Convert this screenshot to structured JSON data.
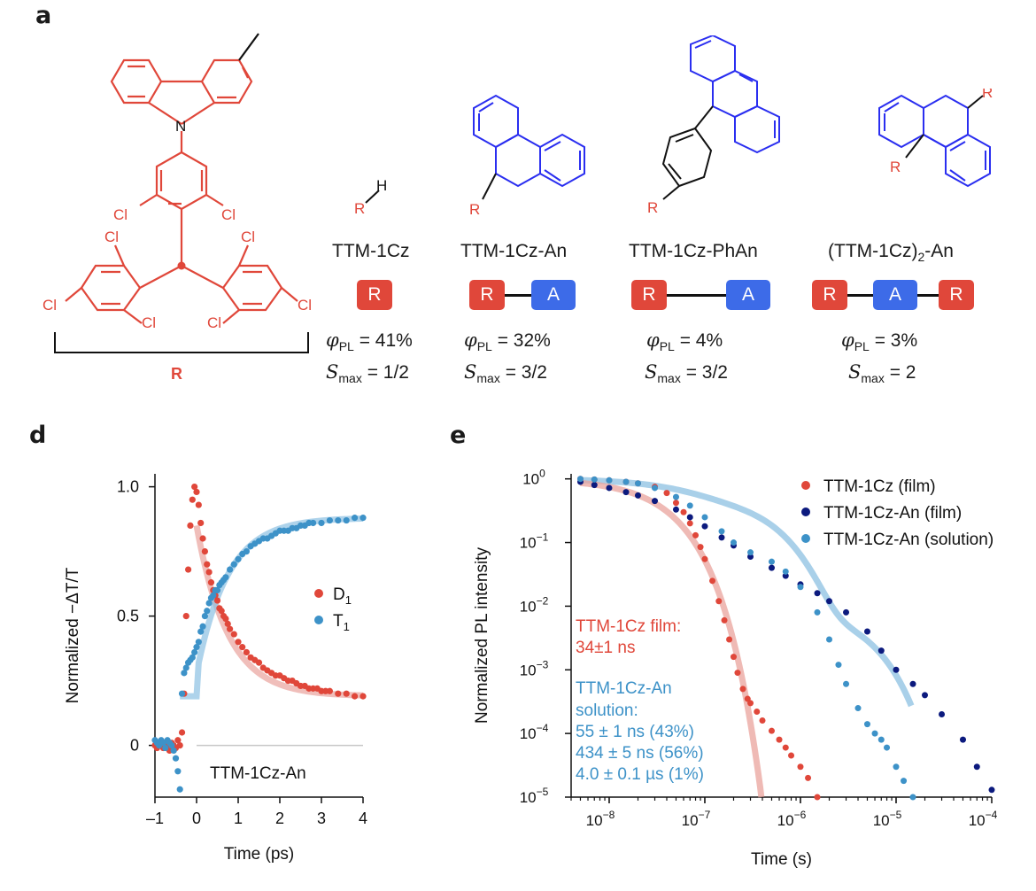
{
  "colors": {
    "red": "#e0473a",
    "blue": "#2a2ef0",
    "dblue": "#0c1a7e",
    "lblue": "#3d92c8",
    "lred": "#e9a39c",
    "lblue_fit": "#8cc0e2"
  },
  "panel_a": {
    "letter": "a",
    "structure": {
      "atoms": {
        "N": "N",
        "Cl": "Cl",
        "R": "R",
        "H": "H"
      }
    },
    "molecules": [
      {
        "name": "TTM-1Cz",
        "phi_symbol": "φ",
        "phi_sub": "PL",
        "phi_value": "= 41%",
        "s_symbol": "S",
        "s_sub": "max",
        "s_value": "= 1/2",
        "boxes": [
          "R"
        ]
      },
      {
        "name": "TTM-1Cz-An",
        "phi_symbol": "φ",
        "phi_sub": "PL",
        "phi_value": "= 32%",
        "s_symbol": "S",
        "s_sub": "max",
        "s_value": "= 3/2",
        "boxes": [
          "R",
          "A"
        ]
      },
      {
        "name": "TTM-1Cz-PhAn",
        "phi_symbol": "φ",
        "phi_sub": "PL",
        "phi_value": "= 4%",
        "s_symbol": "S",
        "s_sub": "max",
        "s_value": "= 3/2",
        "boxes": [
          "R",
          "A"
        ]
      },
      {
        "name_pre": "(TTM-1Cz)",
        "name_sub": "2",
        "name_post": "-An",
        "phi_symbol": "φ",
        "phi_sub": "PL",
        "phi_value": "= 3%",
        "s_symbol": "S",
        "s_sub": "max",
        "s_value": "= 2",
        "boxes": [
          "R",
          "A",
          "R"
        ]
      }
    ]
  },
  "panel_d": {
    "letter": "d",
    "inset_label": "TTM-1Cz-An"
  },
  "panel_e": {
    "letter": "e",
    "annotations": {
      "film_title": "TTM-1Cz film:",
      "film_value": "34±1 ns",
      "sol_title": "TTM-1Cz-An",
      "sol_sub": "solution:",
      "sol_c1": "55 ± 1 ns (43%)",
      "sol_c2": "434 ± 5 ns (56%)",
      "sol_c3": "4.0 ± 0.1 µs (1%)"
    }
  },
  "chart_data": [
    {
      "type": "scatter",
      "panel": "d",
      "title": "",
      "xlabel": "Time (ps)",
      "ylabel": "Normalized −ΔT/T",
      "xlim": [
        -1,
        4
      ],
      "ylim": [
        -0.2,
        1.05
      ],
      "xticks": [
        -1,
        0,
        1,
        2,
        3,
        4
      ],
      "xtick_labels": [
        "–1",
        "0",
        "1",
        "2",
        "3",
        "4"
      ],
      "yticks": [
        0,
        0.5,
        1.0
      ],
      "ytick_labels": [
        "0",
        "0.5",
        "1.0"
      ],
      "legend": {
        "placement": "middle-right",
        "entries": [
          {
            "name": "D",
            "sub": "1",
            "color": "#e0473a"
          },
          {
            "name": "T",
            "sub": "1",
            "color": "#3d92c8"
          }
        ]
      },
      "series": [
        {
          "name": "D1",
          "color": "#e0473a",
          "x": [
            -1.0,
            -0.95,
            -0.9,
            -0.85,
            -0.8,
            -0.75,
            -0.7,
            -0.65,
            -0.6,
            -0.55,
            -0.5,
            -0.45,
            -0.4,
            -0.35,
            -0.3,
            -0.25,
            -0.2,
            -0.15,
            -0.1,
            -0.05,
            0.0,
            0.05,
            0.1,
            0.15,
            0.2,
            0.25,
            0.3,
            0.35,
            0.4,
            0.45,
            0.5,
            0.55,
            0.6,
            0.65,
            0.7,
            0.75,
            0.8,
            0.9,
            1.0,
            1.1,
            1.2,
            1.3,
            1.4,
            1.5,
            1.6,
            1.7,
            1.8,
            1.9,
            2.0,
            2.1,
            2.2,
            2.3,
            2.4,
            2.5,
            2.6,
            2.7,
            2.8,
            2.9,
            3.0,
            3.1,
            3.2,
            3.4,
            3.6,
            3.8,
            4.0
          ],
          "y": [
            0.0,
            -0.01,
            0.01,
            0.0,
            -0.01,
            0.01,
            0.0,
            -0.02,
            0.01,
            0.0,
            -0.01,
            0.02,
            0.0,
            0.05,
            0.2,
            0.5,
            0.68,
            0.85,
            0.95,
            1.0,
            0.98,
            0.93,
            0.86,
            0.8,
            0.75,
            0.7,
            0.67,
            0.63,
            0.6,
            0.58,
            0.56,
            0.53,
            0.52,
            0.5,
            0.49,
            0.47,
            0.45,
            0.43,
            0.4,
            0.38,
            0.36,
            0.34,
            0.33,
            0.32,
            0.3,
            0.29,
            0.28,
            0.27,
            0.27,
            0.26,
            0.25,
            0.25,
            0.24,
            0.23,
            0.23,
            0.22,
            0.22,
            0.22,
            0.21,
            0.21,
            0.21,
            0.2,
            0.2,
            0.19,
            0.19
          ]
        },
        {
          "name": "T1",
          "color": "#3d92c8",
          "x": [
            -1.0,
            -0.95,
            -0.9,
            -0.85,
            -0.8,
            -0.75,
            -0.7,
            -0.65,
            -0.6,
            -0.55,
            -0.5,
            -0.45,
            -0.4,
            -0.35,
            -0.3,
            -0.25,
            -0.2,
            -0.15,
            -0.1,
            -0.05,
            0.0,
            0.05,
            0.1,
            0.15,
            0.2,
            0.25,
            0.3,
            0.35,
            0.4,
            0.45,
            0.5,
            0.55,
            0.6,
            0.65,
            0.7,
            0.8,
            0.9,
            1.0,
            1.1,
            1.2,
            1.3,
            1.4,
            1.5,
            1.6,
            1.7,
            1.8,
            1.9,
            2.0,
            2.1,
            2.2,
            2.3,
            2.4,
            2.5,
            2.6,
            2.7,
            2.8,
            3.0,
            3.2,
            3.4,
            3.6,
            3.8,
            4.0
          ],
          "y": [
            0.02,
            0.01,
            0.0,
            0.02,
            0.01,
            -0.01,
            0.02,
            0.01,
            0.0,
            -0.02,
            -0.05,
            -0.1,
            -0.17,
            0.2,
            0.28,
            0.3,
            0.32,
            0.33,
            0.34,
            0.36,
            0.38,
            0.4,
            0.44,
            0.46,
            0.5,
            0.52,
            0.55,
            0.57,
            0.58,
            0.6,
            0.6,
            0.62,
            0.63,
            0.64,
            0.65,
            0.68,
            0.7,
            0.72,
            0.74,
            0.75,
            0.77,
            0.78,
            0.79,
            0.8,
            0.8,
            0.81,
            0.82,
            0.83,
            0.83,
            0.83,
            0.84,
            0.84,
            0.85,
            0.85,
            0.86,
            0.86,
            0.86,
            0.87,
            0.87,
            0.87,
            0.88,
            0.88
          ]
        }
      ]
    },
    {
      "type": "scatter",
      "panel": "e",
      "title": "",
      "xlabel": "Time (s)",
      "ylabel": "Normalized PL intensity",
      "xscale": "log",
      "yscale": "log",
      "xlim": [
        4e-09,
        0.0001
      ],
      "ylim": [
        1e-05,
        1.2
      ],
      "xticks": [
        1e-08,
        1e-07,
        1e-06,
        1e-05,
        0.0001
      ],
      "xtick_exponents": [
        "−8",
        "−7",
        "−6",
        "−5",
        "−4"
      ],
      "yticks": [
        1e-05,
        0.0001,
        0.001,
        0.01,
        0.1,
        1
      ],
      "ytick_exponents": [
        "−5",
        "−4",
        "−3",
        "−2",
        "−1",
        "0"
      ],
      "tick_base": "10",
      "legend": {
        "placement": "top-right",
        "entries": [
          {
            "name": "TTM-1Cz (film)",
            "color": "#e0473a"
          },
          {
            "name": "TTM-1Cz-An (film)",
            "color": "#0c1a7e"
          },
          {
            "name": "TTM-1Cz-An (solution)",
            "color": "#3d92c8"
          }
        ]
      },
      "series": [
        {
          "name": "TTM-1Cz (film)",
          "color": "#e0473a",
          "x": [
            5e-09,
            7e-09,
            1e-08,
            1.5e-08,
            2e-08,
            3e-08,
            4e-08,
            5e-08,
            6e-08,
            7e-08,
            8e-08,
            9e-08,
            1e-07,
            1.2e-07,
            1.4e-07,
            1.6e-07,
            1.8e-07,
            2e-07,
            2.2e-07,
            2.5e-07,
            2.8e-07,
            3e-07,
            3.5e-07,
            4e-07,
            5e-07,
            6e-07,
            7e-07,
            8e-07,
            1e-06,
            1.2e-06,
            1.5e-06
          ],
          "y": [
            1.0,
            0.98,
            0.95,
            0.9,
            0.85,
            0.75,
            0.6,
            0.42,
            0.3,
            0.2,
            0.13,
            0.085,
            0.055,
            0.025,
            0.012,
            0.006,
            0.003,
            0.0016,
            0.0009,
            0.0005,
            0.00035,
            0.0003,
            0.00022,
            0.00016,
            0.00011,
            8e-05,
            6e-05,
            4.5e-05,
            3e-05,
            2e-05,
            1e-05
          ]
        },
        {
          "name": "TTM-1Cz-An (film)",
          "color": "#0c1a7e",
          "x": [
            5e-09,
            7e-09,
            1e-08,
            1.5e-08,
            2e-08,
            3e-08,
            5e-08,
            7e-08,
            1e-07,
            1.5e-07,
            2e-07,
            3e-07,
            5e-07,
            7e-07,
            1e-06,
            1.5e-06,
            2e-06,
            3e-06,
            5e-06,
            7e-06,
            1e-05,
            1.5e-05,
            2e-05,
            3e-05,
            5e-05,
            7e-05,
            0.0001
          ],
          "y": [
            0.9,
            0.8,
            0.72,
            0.62,
            0.55,
            0.45,
            0.33,
            0.25,
            0.18,
            0.12,
            0.09,
            0.06,
            0.04,
            0.03,
            0.022,
            0.016,
            0.012,
            0.008,
            0.004,
            0.002,
            0.001,
            0.0006,
            0.0004,
            0.0002,
            8e-05,
            3e-05,
            1.3e-05
          ]
        },
        {
          "name": "TTM-1Cz-An (solution)",
          "color": "#3d92c8",
          "x": [
            5e-09,
            7e-09,
            1e-08,
            1.5e-08,
            2e-08,
            3e-08,
            5e-08,
            7e-08,
            1e-07,
            1.5e-07,
            2e-07,
            3e-07,
            5e-07,
            7e-07,
            1e-06,
            1.5e-06,
            2e-06,
            2.5e-06,
            3e-06,
            4e-06,
            5e-06,
            6e-06,
            7e-06,
            8e-06,
            1e-05,
            1.2e-05,
            1.5e-05
          ],
          "y": [
            1.0,
            0.98,
            0.95,
            0.9,
            0.85,
            0.72,
            0.52,
            0.38,
            0.25,
            0.15,
            0.1,
            0.07,
            0.05,
            0.035,
            0.02,
            0.008,
            0.003,
            0.0012,
            0.0006,
            0.00025,
            0.00014,
            0.0001,
            8e-05,
            6e-05,
            3e-05,
            1.8e-05,
            1e-05
          ]
        }
      ]
    }
  ]
}
